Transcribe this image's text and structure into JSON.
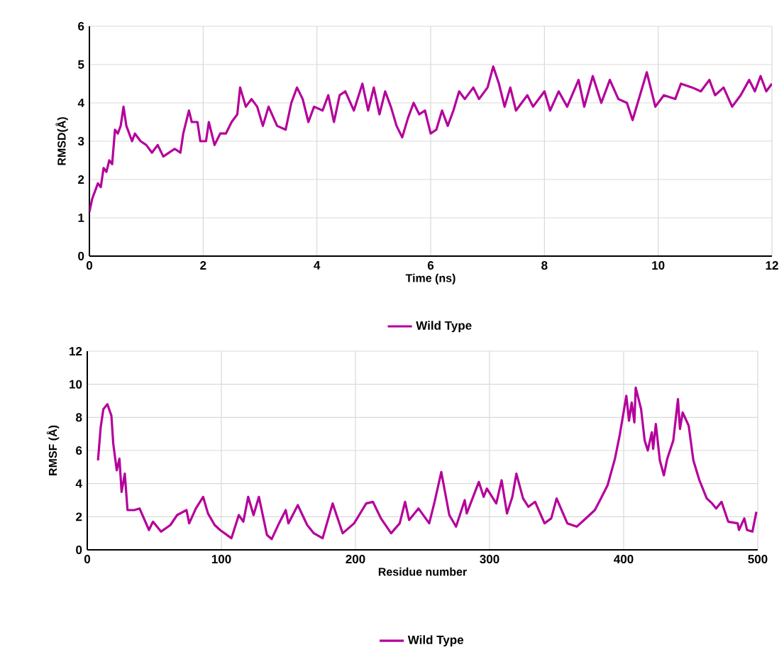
{
  "chart_data": [
    {
      "type": "line",
      "xlabel": "Time (ns)",
      "ylabel": "RMSD(Å)",
      "xlim": [
        0,
        12
      ],
      "ylim": [
        0,
        6
      ],
      "xticks": [
        0,
        2,
        4,
        6,
        8,
        10,
        12
      ],
      "yticks": [
        0,
        1,
        2,
        3,
        4,
        5,
        6
      ],
      "grid": true,
      "legend": "bottom",
      "x": [
        0,
        0.05,
        0.1,
        0.15,
        0.2,
        0.25,
        0.3,
        0.35,
        0.4,
        0.45,
        0.5,
        0.55,
        0.6,
        0.65,
        0.7,
        0.75,
        0.8,
        0.9,
        1.0,
        1.1,
        1.2,
        1.3,
        1.4,
        1.5,
        1.6,
        1.65,
        1.75,
        1.8,
        1.9,
        1.95,
        2.05,
        2.1,
        2.2,
        2.3,
        2.4,
        2.5,
        2.6,
        2.65,
        2.75,
        2.85,
        2.95,
        3.05,
        3.15,
        3.3,
        3.45,
        3.55,
        3.65,
        3.75,
        3.85,
        3.95,
        4.1,
        4.2,
        4.3,
        4.4,
        4.5,
        4.65,
        4.8,
        4.9,
        5.0,
        5.1,
        5.2,
        5.3,
        5.4,
        5.5,
        5.6,
        5.7,
        5.8,
        5.9,
        6.0,
        6.1,
        6.2,
        6.3,
        6.4,
        6.5,
        6.6,
        6.75,
        6.85,
        7.0,
        7.1,
        7.2,
        7.3,
        7.4,
        7.5,
        7.7,
        7.8,
        8.0,
        8.1,
        8.25,
        8.4,
        8.6,
        8.7,
        8.85,
        9.0,
        9.15,
        9.3,
        9.45,
        9.55,
        9.7,
        9.8,
        9.95,
        10.1,
        10.3,
        10.4,
        10.6,
        10.75,
        10.9,
        11.0,
        11.15,
        11.3,
        11.45,
        11.6,
        11.7,
        11.8,
        11.9,
        12.0
      ],
      "series": [
        {
          "name": "Wild Type",
          "color": "#b5009b",
          "values": [
            1.15,
            1.5,
            1.7,
            1.9,
            1.8,
            2.3,
            2.2,
            2.5,
            2.4,
            3.3,
            3.2,
            3.4,
            3.9,
            3.4,
            3.2,
            3.0,
            3.2,
            3.0,
            2.9,
            2.7,
            2.9,
            2.6,
            2.7,
            2.8,
            2.7,
            3.2,
            3.8,
            3.5,
            3.5,
            3.0,
            3.0,
            3.5,
            2.9,
            3.2,
            3.2,
            3.5,
            3.7,
            4.4,
            3.9,
            4.1,
            3.9,
            3.4,
            3.9,
            3.4,
            3.3,
            4.0,
            4.4,
            4.1,
            3.5,
            3.9,
            3.8,
            4.2,
            3.5,
            4.2,
            4.3,
            3.8,
            4.5,
            3.8,
            4.4,
            3.7,
            4.3,
            3.9,
            3.4,
            3.1,
            3.6,
            4.0,
            3.7,
            3.8,
            3.2,
            3.3,
            3.8,
            3.4,
            3.8,
            4.3,
            4.1,
            4.4,
            4.1,
            4.4,
            4.95,
            4.5,
            3.9,
            4.4,
            3.8,
            4.2,
            3.9,
            4.3,
            3.8,
            4.3,
            3.9,
            4.6,
            3.9,
            4.7,
            4.0,
            4.6,
            4.1,
            4.0,
            3.55,
            4.3,
            4.8,
            3.9,
            4.2,
            4.1,
            4.5,
            4.4,
            4.3,
            4.6,
            4.2,
            4.4,
            3.9,
            4.2,
            4.6,
            4.3,
            4.7,
            4.3,
            4.5
          ]
        }
      ]
    },
    {
      "type": "line",
      "xlabel": "Residue number",
      "ylabel": "RMSF (Å)",
      "xlim": [
        0,
        500
      ],
      "ylim": [
        0,
        12
      ],
      "xticks": [
        0,
        100,
        200,
        300,
        400,
        500
      ],
      "yticks": [
        0,
        2,
        4,
        6,
        8,
        10,
        12
      ],
      "grid": true,
      "legend": "bottom",
      "x": [
        8,
        10,
        12,
        15,
        18,
        19.4,
        22,
        24,
        25.6,
        28,
        30,
        35,
        39,
        46,
        49,
        55,
        62,
        67,
        74,
        76,
        81,
        86.4,
        90,
        95,
        99,
        107.5,
        113,
        116.4,
        120,
        124,
        128,
        134,
        137.5,
        143,
        148,
        150,
        157,
        164,
        169,
        175.5,
        183,
        190.5,
        199,
        208,
        213,
        219,
        226.6,
        233,
        237,
        240,
        247,
        255,
        259,
        264,
        270,
        275,
        281.5,
        283,
        292,
        295.6,
        298,
        305,
        309,
        313,
        317,
        320,
        325,
        329,
        334,
        341,
        346,
        350,
        358,
        365,
        370.5,
        378.5,
        383,
        388,
        393.5,
        397,
        402,
        404,
        406,
        408,
        409,
        413,
        415.7,
        418,
        421,
        422,
        424,
        427,
        430,
        432.5,
        437,
        440.5,
        442,
        444,
        448.5,
        452,
        456.5,
        462,
        466,
        469,
        473,
        478,
        485,
        486,
        490,
        492,
        496,
        499
      ],
      "series": [
        {
          "name": "Wild Type",
          "color": "#b5009b",
          "values": [
            5.4,
            7.4,
            8.5,
            8.8,
            8.1,
            6.4,
            4.8,
            5.5,
            3.5,
            4.6,
            2.4,
            2.4,
            2.5,
            1.2,
            1.7,
            1.1,
            1.5,
            2.1,
            2.4,
            1.6,
            2.5,
            3.2,
            2.2,
            1.5,
            1.2,
            0.7,
            2.1,
            1.7,
            3.2,
            2.1,
            3.2,
            0.9,
            0.65,
            1.6,
            2.4,
            1.6,
            2.7,
            1.5,
            1.0,
            0.7,
            2.8,
            1.0,
            1.6,
            2.8,
            2.9,
            1.9,
            1.0,
            1.6,
            2.9,
            1.8,
            2.5,
            1.6,
            2.9,
            4.7,
            2.1,
            1.4,
            3.0,
            2.2,
            4.1,
            3.2,
            3.7,
            2.8,
            4.2,
            2.2,
            3.2,
            4.6,
            3.1,
            2.6,
            2.9,
            1.6,
            1.9,
            3.1,
            1.6,
            1.4,
            1.8,
            2.4,
            3.1,
            3.9,
            5.5,
            6.9,
            9.3,
            7.8,
            8.9,
            7.7,
            9.8,
            8.5,
            6.6,
            6.0,
            7.1,
            6.1,
            7.6,
            5.4,
            4.5,
            5.5,
            6.6,
            9.1,
            7.3,
            8.3,
            7.5,
            5.4,
            4.2,
            3.1,
            2.8,
            2.5,
            2.9,
            1.7,
            1.6,
            1.2,
            1.9,
            1.2,
            1.1,
            2.3
          ]
        }
      ]
    }
  ]
}
